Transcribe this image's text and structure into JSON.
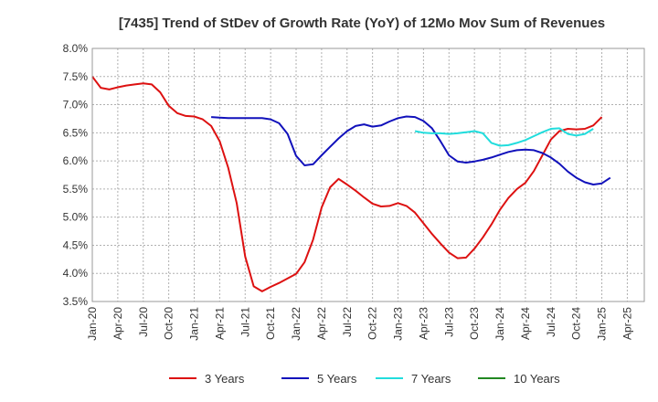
{
  "chart_data": {
    "type": "line",
    "title": "[7435]  Trend of StDev of Growth Rate (YoY) of 12Mo Mov Sum of Revenues",
    "xlabel": "",
    "ylabel": "",
    "ylim": [
      3.5,
      8.0
    ],
    "y_ticks": [
      3.5,
      4.0,
      4.5,
      5.0,
      5.5,
      6.0,
      6.5,
      7.0,
      7.5,
      8.0
    ],
    "y_tick_labels": [
      "3.5%",
      "4.0%",
      "4.5%",
      "5.0%",
      "5.5%",
      "6.0%",
      "6.5%",
      "7.0%",
      "7.5%",
      "8.0%"
    ],
    "x_tick_labels": [
      "Jan-20",
      "Apr-20",
      "Jul-20",
      "Oct-20",
      "Jan-21",
      "Apr-21",
      "Jul-21",
      "Oct-21",
      "Jan-22",
      "Apr-22",
      "Jul-22",
      "Oct-22",
      "Jan-23",
      "Apr-23",
      "Jul-23",
      "Oct-23",
      "Jan-24",
      "Apr-24",
      "Jul-24",
      "Oct-24",
      "Jan-25",
      "Apr-25"
    ],
    "x_start": "2020-01",
    "x_count": 66,
    "grid": true,
    "legend_position": "bottom",
    "series": [
      {
        "name": "3 Years",
        "color": "#dd1111",
        "start_index": 0,
        "values": [
          7.5,
          7.3,
          7.27,
          7.31,
          7.34,
          7.36,
          7.38,
          7.36,
          7.22,
          6.98,
          6.85,
          6.8,
          6.79,
          6.74,
          6.62,
          6.35,
          5.88,
          5.25,
          4.3,
          3.77,
          3.68,
          3.76,
          3.83,
          3.91,
          3.99,
          4.2,
          4.6,
          5.17,
          5.53,
          5.68,
          5.58,
          5.47,
          5.35,
          5.24,
          5.19,
          5.2,
          5.25,
          5.2,
          5.08,
          4.89,
          4.7,
          4.53,
          4.37,
          4.27,
          4.28,
          4.44,
          4.64,
          4.87,
          5.13,
          5.34,
          5.5,
          5.61,
          5.82,
          6.1,
          6.38,
          6.53,
          6.57,
          6.56,
          6.57,
          6.63,
          6.78
        ]
      },
      {
        "name": "5 Years",
        "color": "#1111bb",
        "start_index": 14,
        "values": [
          6.78,
          6.77,
          6.76,
          6.76,
          6.76,
          6.76,
          6.76,
          6.74,
          6.67,
          6.48,
          6.09,
          5.92,
          5.94,
          6.1,
          6.25,
          6.4,
          6.53,
          6.62,
          6.65,
          6.61,
          6.63,
          6.7,
          6.76,
          6.79,
          6.78,
          6.71,
          6.58,
          6.35,
          6.1,
          5.99,
          5.97,
          5.99,
          6.02,
          6.06,
          6.11,
          6.16,
          6.19,
          6.2,
          6.19,
          6.14,
          6.06,
          5.95,
          5.81,
          5.7,
          5.62,
          5.58,
          5.6,
          5.7
        ]
      },
      {
        "name": "7 Years",
        "color": "#22dddd",
        "start_index": 38,
        "values": [
          6.53,
          6.5,
          6.49,
          6.49,
          6.48,
          6.49,
          6.51,
          6.53,
          6.49,
          6.32,
          6.27,
          6.28,
          6.32,
          6.37,
          6.44,
          6.51,
          6.57,
          6.58,
          6.48,
          6.45,
          6.48,
          6.57
        ]
      },
      {
        "name": "10 Years",
        "color": "#228822",
        "start_index": 0,
        "values": []
      }
    ]
  }
}
